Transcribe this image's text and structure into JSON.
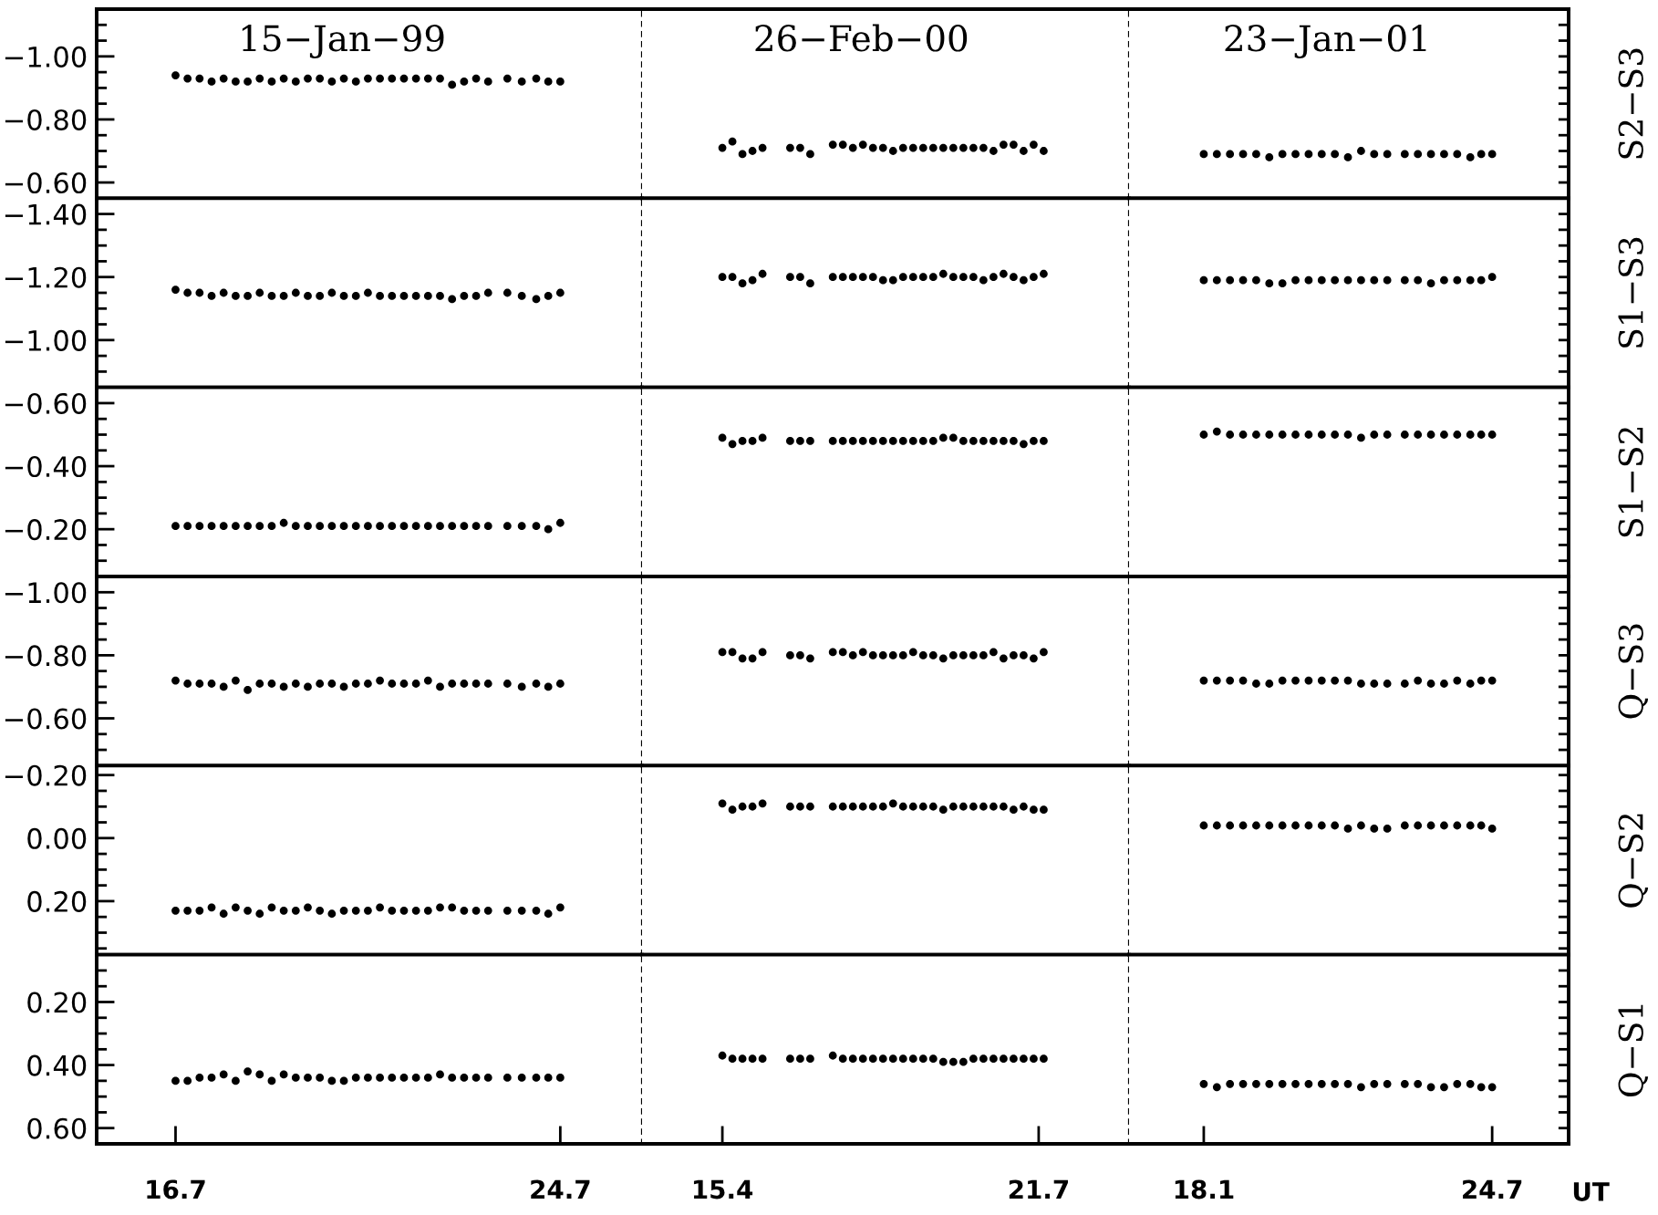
{
  "chart_data": [
    {
      "type": "scatter",
      "title": "15−Jan−99",
      "marker": "circle",
      "color": "#000000",
      "tick_labels": "y",
      "xlim": [
        15.06,
        26.4
      ],
      "ylim": [
        -0.55,
        -1.15
      ],
      "yticks": [
        {
          "value": -1.1,
          "label": null
        },
        {
          "value": -1.05,
          "label": null
        },
        {
          "value": -1.0,
          "label": "−1.00"
        },
        {
          "value": -0.95,
          "label": null
        },
        {
          "value": -0.9,
          "label": null
        },
        {
          "value": -0.85,
          "label": null
        },
        {
          "value": -0.8,
          "label": "−0.80"
        },
        {
          "value": -0.75,
          "label": null
        },
        {
          "value": -0.7,
          "label": null
        },
        {
          "value": -0.65,
          "label": null
        },
        {
          "value": -0.6,
          "label": "−0.60"
        }
      ],
      "x": [
        16.7,
        16.95,
        17.2,
        17.45,
        17.7,
        17.95,
        18.2,
        18.45,
        18.7,
        18.95,
        19.2,
        19.45,
        19.7,
        19.95,
        20.2,
        20.45,
        20.7,
        20.95,
        21.2,
        21.45,
        21.7,
        21.95,
        22.2,
        22.45,
        22.7,
        22.95,
        23.2,
        23.6,
        23.9,
        24.2,
        24.45,
        24.7
      ],
      "values": [
        -0.94,
        -0.93,
        -0.93,
        -0.92,
        -0.93,
        -0.92,
        -0.92,
        -0.93,
        -0.92,
        -0.93,
        -0.92,
        -0.93,
        -0.93,
        -0.92,
        -0.93,
        -0.92,
        -0.93,
        -0.93,
        -0.93,
        -0.93,
        -0.93,
        -0.93,
        -0.93,
        -0.91,
        -0.92,
        -0.93,
        -0.92,
        -0.93,
        -0.92,
        -0.93,
        -0.92,
        -0.92
      ]
    },
    {
      "type": "scatter",
      "title": "26−Feb−00",
      "marker": "circle",
      "color": "#000000",
      "tick_labels": false,
      "xlim": [
        13.8,
        23.5
      ],
      "ylim": [
        -0.55,
        -1.15
      ],
      "x": [
        15.4,
        15.6,
        15.8,
        16.0,
        16.2,
        16.75,
        16.95,
        17.15,
        17.6,
        17.8,
        18.0,
        18.2,
        18.4,
        18.6,
        18.8,
        19.0,
        19.2,
        19.4,
        19.6,
        19.8,
        20.0,
        20.2,
        20.4,
        20.6,
        20.8,
        21.0,
        21.2,
        21.4,
        21.6,
        21.8
      ],
      "values": [
        -0.71,
        -0.73,
        -0.69,
        -0.7,
        -0.71,
        -0.71,
        -0.71,
        -0.69,
        -0.72,
        -0.72,
        -0.71,
        -0.72,
        -0.71,
        -0.71,
        -0.7,
        -0.71,
        -0.71,
        -0.71,
        -0.71,
        -0.71,
        -0.71,
        -0.71,
        -0.71,
        -0.71,
        -0.7,
        -0.72,
        -0.72,
        -0.7,
        -0.72,
        -0.7
      ]
    },
    {
      "type": "scatter",
      "title": "23−Jan−01",
      "y2label": "S2−S3",
      "marker": "circle",
      "color": "#000000",
      "tick_labels": false,
      "xlim": [
        16.39,
        26.45
      ],
      "ylim": [
        -0.55,
        -1.15
      ],
      "yticks": [
        {
          "value": -1.1,
          "label": null
        },
        {
          "value": -1.05,
          "label": null
        },
        {
          "value": -1.0,
          "label": null
        },
        {
          "value": -0.95,
          "label": null
        },
        {
          "value": -0.9,
          "label": null
        },
        {
          "value": -0.85,
          "label": null
        },
        {
          "value": -0.8,
          "label": null
        },
        {
          "value": -0.75,
          "label": null
        },
        {
          "value": -0.7,
          "label": null
        },
        {
          "value": -0.65,
          "label": null
        },
        {
          "value": -0.6,
          "label": null
        }
      ],
      "x": [
        18.1,
        18.4,
        18.7,
        19.0,
        19.3,
        19.6,
        19.9,
        20.2,
        20.5,
        20.8,
        21.1,
        21.4,
        21.7,
        22.0,
        22.3,
        22.7,
        23.0,
        23.3,
        23.6,
        23.9,
        24.2,
        24.45,
        24.7
      ],
      "values": [
        -0.69,
        -0.69,
        -0.69,
        -0.69,
        -0.69,
        -0.68,
        -0.69,
        -0.69,
        -0.69,
        -0.69,
        -0.69,
        -0.68,
        -0.7,
        -0.69,
        -0.69,
        -0.69,
        -0.69,
        -0.69,
        -0.69,
        -0.69,
        -0.68,
        -0.69,
        -0.69
      ]
    },
    {
      "type": "scatter",
      "marker": "circle",
      "color": "#000000",
      "tick_labels": "y",
      "xlim": [
        15.06,
        26.4
      ],
      "ylim": [
        -0.85,
        -1.45
      ],
      "yticks": [
        {
          "value": -1.4,
          "label": "−1.40"
        },
        {
          "value": -1.35,
          "label": null
        },
        {
          "value": -1.3,
          "label": null
        },
        {
          "value": -1.25,
          "label": null
        },
        {
          "value": -1.2,
          "label": "−1.20"
        },
        {
          "value": -1.15,
          "label": null
        },
        {
          "value": -1.1,
          "label": null
        },
        {
          "value": -1.05,
          "label": null
        },
        {
          "value": -1.0,
          "label": "−1.00"
        },
        {
          "value": -0.95,
          "label": null
        },
        {
          "value": -0.9,
          "label": null
        }
      ],
      "x": [
        16.7,
        16.95,
        17.2,
        17.45,
        17.7,
        17.95,
        18.2,
        18.45,
        18.7,
        18.95,
        19.2,
        19.45,
        19.7,
        19.95,
        20.2,
        20.45,
        20.7,
        20.95,
        21.2,
        21.45,
        21.7,
        21.95,
        22.2,
        22.45,
        22.7,
        22.95,
        23.2,
        23.6,
        23.9,
        24.2,
        24.45,
        24.7
      ],
      "values": [
        -1.16,
        -1.15,
        -1.15,
        -1.14,
        -1.15,
        -1.14,
        -1.14,
        -1.15,
        -1.14,
        -1.14,
        -1.15,
        -1.14,
        -1.14,
        -1.15,
        -1.14,
        -1.14,
        -1.15,
        -1.14,
        -1.14,
        -1.14,
        -1.14,
        -1.14,
        -1.14,
        -1.13,
        -1.14,
        -1.14,
        -1.15,
        -1.15,
        -1.14,
        -1.13,
        -1.14,
        -1.15
      ]
    },
    {
      "type": "scatter",
      "marker": "circle",
      "color": "#000000",
      "tick_labels": false,
      "xlim": [
        13.8,
        23.5
      ],
      "ylim": [
        -0.85,
        -1.45
      ],
      "x": [
        15.4,
        15.6,
        15.8,
        16.0,
        16.2,
        16.75,
        16.95,
        17.15,
        17.6,
        17.8,
        18.0,
        18.2,
        18.4,
        18.6,
        18.8,
        19.0,
        19.2,
        19.4,
        19.6,
        19.8,
        20.0,
        20.2,
        20.4,
        20.6,
        20.8,
        21.0,
        21.2,
        21.4,
        21.6,
        21.8
      ],
      "values": [
        -1.2,
        -1.2,
        -1.18,
        -1.19,
        -1.21,
        -1.2,
        -1.2,
        -1.18,
        -1.2,
        -1.2,
        -1.2,
        -1.2,
        -1.2,
        -1.19,
        -1.19,
        -1.2,
        -1.2,
        -1.2,
        -1.2,
        -1.21,
        -1.2,
        -1.2,
        -1.2,
        -1.19,
        -1.2,
        -1.21,
        -1.2,
        -1.19,
        -1.2,
        -1.21
      ]
    },
    {
      "type": "scatter",
      "y2label": "S1−S3",
      "marker": "circle",
      "color": "#000000",
      "tick_labels": false,
      "xlim": [
        16.39,
        26.45
      ],
      "ylim": [
        -0.85,
        -1.45
      ],
      "yticks": [
        {
          "value": -1.4,
          "label": null
        },
        {
          "value": -1.35,
          "label": null
        },
        {
          "value": -1.3,
          "label": null
        },
        {
          "value": -1.25,
          "label": null
        },
        {
          "value": -1.2,
          "label": null
        },
        {
          "value": -1.15,
          "label": null
        },
        {
          "value": -1.1,
          "label": null
        },
        {
          "value": -1.05,
          "label": null
        },
        {
          "value": -1.0,
          "label": null
        },
        {
          "value": -0.95,
          "label": null
        },
        {
          "value": -0.9,
          "label": null
        }
      ],
      "x": [
        18.1,
        18.4,
        18.7,
        19.0,
        19.3,
        19.6,
        19.9,
        20.2,
        20.5,
        20.8,
        21.1,
        21.4,
        21.7,
        22.0,
        22.3,
        22.7,
        23.0,
        23.3,
        23.6,
        23.9,
        24.2,
        24.45,
        24.7
      ],
      "values": [
        -1.19,
        -1.19,
        -1.19,
        -1.19,
        -1.19,
        -1.18,
        -1.18,
        -1.19,
        -1.19,
        -1.19,
        -1.19,
        -1.19,
        -1.19,
        -1.19,
        -1.19,
        -1.19,
        -1.19,
        -1.18,
        -1.19,
        -1.19,
        -1.19,
        -1.19,
        -1.2
      ]
    },
    {
      "type": "scatter",
      "marker": "circle",
      "color": "#000000",
      "tick_labels": "y",
      "xlim": [
        15.06,
        26.4
      ],
      "ylim": [
        -0.05,
        -0.65
      ],
      "yticks": [
        {
          "value": -0.6,
          "label": "−0.60"
        },
        {
          "value": -0.55,
          "label": null
        },
        {
          "value": -0.5,
          "label": null
        },
        {
          "value": -0.45,
          "label": null
        },
        {
          "value": -0.4,
          "label": "−0.40"
        },
        {
          "value": -0.35,
          "label": null
        },
        {
          "value": -0.3,
          "label": null
        },
        {
          "value": -0.25,
          "label": null
        },
        {
          "value": -0.2,
          "label": "−0.20"
        },
        {
          "value": -0.15,
          "label": null
        },
        {
          "value": -0.1,
          "label": null
        }
      ],
      "x": [
        16.7,
        16.95,
        17.2,
        17.45,
        17.7,
        17.95,
        18.2,
        18.45,
        18.7,
        18.95,
        19.2,
        19.45,
        19.7,
        19.95,
        20.2,
        20.45,
        20.7,
        20.95,
        21.2,
        21.45,
        21.7,
        21.95,
        22.2,
        22.45,
        22.7,
        22.95,
        23.2,
        23.6,
        23.9,
        24.2,
        24.45,
        24.7
      ],
      "values": [
        -0.21,
        -0.21,
        -0.21,
        -0.21,
        -0.21,
        -0.21,
        -0.21,
        -0.21,
        -0.21,
        -0.22,
        -0.21,
        -0.21,
        -0.21,
        -0.21,
        -0.21,
        -0.21,
        -0.21,
        -0.21,
        -0.21,
        -0.21,
        -0.21,
        -0.21,
        -0.21,
        -0.21,
        -0.21,
        -0.21,
        -0.21,
        -0.21,
        -0.21,
        -0.21,
        -0.2,
        -0.22
      ]
    },
    {
      "type": "scatter",
      "marker": "circle",
      "color": "#000000",
      "tick_labels": false,
      "xlim": [
        13.8,
        23.5
      ],
      "ylim": [
        -0.05,
        -0.65
      ],
      "x": [
        15.4,
        15.6,
        15.8,
        16.0,
        16.2,
        16.75,
        16.95,
        17.15,
        17.6,
        17.8,
        18.0,
        18.2,
        18.4,
        18.6,
        18.8,
        19.0,
        19.2,
        19.4,
        19.6,
        19.8,
        20.0,
        20.2,
        20.4,
        20.6,
        20.8,
        21.0,
        21.2,
        21.4,
        21.6,
        21.8
      ],
      "values": [
        -0.49,
        -0.47,
        -0.48,
        -0.48,
        -0.49,
        -0.48,
        -0.48,
        -0.48,
        -0.48,
        -0.48,
        -0.48,
        -0.48,
        -0.48,
        -0.48,
        -0.48,
        -0.48,
        -0.48,
        -0.48,
        -0.48,
        -0.49,
        -0.49,
        -0.48,
        -0.48,
        -0.48,
        -0.48,
        -0.48,
        -0.48,
        -0.47,
        -0.48,
        -0.48
      ]
    },
    {
      "type": "scatter",
      "y2label": "S1−S2",
      "marker": "circle",
      "color": "#000000",
      "tick_labels": false,
      "xlim": [
        16.39,
        26.45
      ],
      "ylim": [
        -0.05,
        -0.65
      ],
      "yticks": [
        {
          "value": -0.6,
          "label": null
        },
        {
          "value": -0.55,
          "label": null
        },
        {
          "value": -0.5,
          "label": null
        },
        {
          "value": -0.45,
          "label": null
        },
        {
          "value": -0.4,
          "label": null
        },
        {
          "value": -0.35,
          "label": null
        },
        {
          "value": -0.3,
          "label": null
        },
        {
          "value": -0.25,
          "label": null
        },
        {
          "value": -0.2,
          "label": null
        },
        {
          "value": -0.15,
          "label": null
        },
        {
          "value": -0.1,
          "label": null
        }
      ],
      "x": [
        18.1,
        18.4,
        18.7,
        19.0,
        19.3,
        19.6,
        19.9,
        20.2,
        20.5,
        20.8,
        21.1,
        21.4,
        21.7,
        22.0,
        22.3,
        22.7,
        23.0,
        23.3,
        23.6,
        23.9,
        24.2,
        24.45,
        24.7
      ],
      "values": [
        -0.5,
        -0.51,
        -0.5,
        -0.5,
        -0.5,
        -0.5,
        -0.5,
        -0.5,
        -0.5,
        -0.5,
        -0.5,
        -0.5,
        -0.49,
        -0.5,
        -0.5,
        -0.5,
        -0.5,
        -0.5,
        -0.5,
        -0.5,
        -0.5,
        -0.5,
        -0.5
      ]
    },
    {
      "type": "scatter",
      "marker": "circle",
      "color": "#000000",
      "tick_labels": "y",
      "xlim": [
        15.06,
        26.4
      ],
      "ylim": [
        -0.45,
        -1.05
      ],
      "yticks": [
        {
          "value": -1.0,
          "label": "−1.00"
        },
        {
          "value": -0.95,
          "label": null
        },
        {
          "value": -0.9,
          "label": null
        },
        {
          "value": -0.85,
          "label": null
        },
        {
          "value": -0.8,
          "label": "−0.80"
        },
        {
          "value": -0.75,
          "label": null
        },
        {
          "value": -0.7,
          "label": null
        },
        {
          "value": -0.65,
          "label": null
        },
        {
          "value": -0.6,
          "label": "−0.60"
        },
        {
          "value": -0.55,
          "label": null
        },
        {
          "value": -0.5,
          "label": null
        }
      ],
      "x": [
        16.7,
        16.95,
        17.2,
        17.45,
        17.7,
        17.95,
        18.2,
        18.45,
        18.7,
        18.95,
        19.2,
        19.45,
        19.7,
        19.95,
        20.2,
        20.45,
        20.7,
        20.95,
        21.2,
        21.45,
        21.7,
        21.95,
        22.2,
        22.45,
        22.7,
        22.95,
        23.2,
        23.6,
        23.9,
        24.2,
        24.45,
        24.7
      ],
      "values": [
        -0.72,
        -0.71,
        -0.71,
        -0.71,
        -0.7,
        -0.72,
        -0.69,
        -0.71,
        -0.71,
        -0.7,
        -0.71,
        -0.7,
        -0.71,
        -0.71,
        -0.7,
        -0.71,
        -0.71,
        -0.72,
        -0.71,
        -0.71,
        -0.71,
        -0.72,
        -0.7,
        -0.71,
        -0.71,
        -0.71,
        -0.71,
        -0.71,
        -0.7,
        -0.71,
        -0.7,
        -0.71
      ]
    },
    {
      "type": "scatter",
      "marker": "circle",
      "color": "#000000",
      "tick_labels": false,
      "xlim": [
        13.8,
        23.5
      ],
      "ylim": [
        -0.45,
        -1.05
      ],
      "x": [
        15.4,
        15.6,
        15.8,
        16.0,
        16.2,
        16.75,
        16.95,
        17.15,
        17.6,
        17.8,
        18.0,
        18.2,
        18.4,
        18.6,
        18.8,
        19.0,
        19.2,
        19.4,
        19.6,
        19.8,
        20.0,
        20.2,
        20.4,
        20.6,
        20.8,
        21.0,
        21.2,
        21.4,
        21.6,
        21.8
      ],
      "values": [
        -0.81,
        -0.81,
        -0.79,
        -0.79,
        -0.81,
        -0.8,
        -0.8,
        -0.79,
        -0.81,
        -0.81,
        -0.8,
        -0.81,
        -0.8,
        -0.8,
        -0.8,
        -0.8,
        -0.81,
        -0.8,
        -0.8,
        -0.79,
        -0.8,
        -0.8,
        -0.8,
        -0.8,
        -0.81,
        -0.79,
        -0.8,
        -0.8,
        -0.79,
        -0.81
      ]
    },
    {
      "type": "scatter",
      "y2label": "Q−S3",
      "marker": "circle",
      "color": "#000000",
      "tick_labels": false,
      "xlim": [
        16.39,
        26.45
      ],
      "ylim": [
        -0.45,
        -1.05
      ],
      "yticks": [
        {
          "value": -1.0,
          "label": null
        },
        {
          "value": -0.95,
          "label": null
        },
        {
          "value": -0.9,
          "label": null
        },
        {
          "value": -0.85,
          "label": null
        },
        {
          "value": -0.8,
          "label": null
        },
        {
          "value": -0.75,
          "label": null
        },
        {
          "value": -0.7,
          "label": null
        },
        {
          "value": -0.65,
          "label": null
        },
        {
          "value": -0.6,
          "label": null
        },
        {
          "value": -0.55,
          "label": null
        },
        {
          "value": -0.5,
          "label": null
        }
      ],
      "x": [
        18.1,
        18.4,
        18.7,
        19.0,
        19.3,
        19.6,
        19.9,
        20.2,
        20.5,
        20.8,
        21.1,
        21.4,
        21.7,
        22.0,
        22.3,
        22.7,
        23.0,
        23.3,
        23.6,
        23.9,
        24.2,
        24.45,
        24.7
      ],
      "values": [
        -0.72,
        -0.72,
        -0.72,
        -0.72,
        -0.71,
        -0.71,
        -0.72,
        -0.72,
        -0.72,
        -0.72,
        -0.72,
        -0.72,
        -0.71,
        -0.71,
        -0.71,
        -0.71,
        -0.72,
        -0.71,
        -0.71,
        -0.72,
        -0.71,
        -0.72,
        -0.72
      ]
    },
    {
      "type": "scatter",
      "marker": "circle",
      "color": "#000000",
      "tick_labels": "y",
      "xlim": [
        15.06,
        26.4
      ],
      "ylim": [
        0.37,
        -0.23
      ],
      "yticks": [
        {
          "value": -0.2,
          "label": "−0.20"
        },
        {
          "value": -0.15,
          "label": null
        },
        {
          "value": -0.1,
          "label": null
        },
        {
          "value": -0.05,
          "label": null
        },
        {
          "value": 0.0,
          "label": "0.00"
        },
        {
          "value": 0.05,
          "label": null
        },
        {
          "value": 0.1,
          "label": null
        },
        {
          "value": 0.15,
          "label": null
        },
        {
          "value": 0.2,
          "label": "0.20"
        },
        {
          "value": 0.25,
          "label": null
        },
        {
          "value": 0.3,
          "label": null
        },
        {
          "value": 0.35,
          "label": null
        }
      ],
      "x": [
        16.7,
        16.95,
        17.2,
        17.45,
        17.7,
        17.95,
        18.2,
        18.45,
        18.7,
        18.95,
        19.2,
        19.45,
        19.7,
        19.95,
        20.2,
        20.45,
        20.7,
        20.95,
        21.2,
        21.45,
        21.7,
        21.95,
        22.2,
        22.45,
        22.7,
        22.95,
        23.2,
        23.6,
        23.9,
        24.2,
        24.45,
        24.7
      ],
      "values": [
        0.23,
        0.23,
        0.23,
        0.22,
        0.24,
        0.22,
        0.23,
        0.24,
        0.22,
        0.23,
        0.23,
        0.22,
        0.23,
        0.24,
        0.23,
        0.23,
        0.23,
        0.22,
        0.23,
        0.23,
        0.23,
        0.23,
        0.22,
        0.22,
        0.23,
        0.23,
        0.23,
        0.23,
        0.23,
        0.23,
        0.24,
        0.22
      ]
    },
    {
      "type": "scatter",
      "marker": "circle",
      "color": "#000000",
      "tick_labels": false,
      "xlim": [
        13.8,
        23.5
      ],
      "ylim": [
        0.37,
        -0.23
      ],
      "x": [
        15.4,
        15.6,
        15.8,
        16.0,
        16.2,
        16.75,
        16.95,
        17.15,
        17.6,
        17.8,
        18.0,
        18.2,
        18.4,
        18.6,
        18.8,
        19.0,
        19.2,
        19.4,
        19.6,
        19.8,
        20.0,
        20.2,
        20.4,
        20.6,
        20.8,
        21.0,
        21.2,
        21.4,
        21.6,
        21.8
      ],
      "values": [
        -0.11,
        -0.09,
        -0.1,
        -0.1,
        -0.11,
        -0.1,
        -0.1,
        -0.1,
        -0.1,
        -0.1,
        -0.1,
        -0.1,
        -0.1,
        -0.1,
        -0.11,
        -0.1,
        -0.1,
        -0.1,
        -0.1,
        -0.09,
        -0.1,
        -0.1,
        -0.1,
        -0.1,
        -0.1,
        -0.1,
        -0.09,
        -0.1,
        -0.09,
        -0.09
      ]
    },
    {
      "type": "scatter",
      "y2label": "Q−S2",
      "marker": "circle",
      "color": "#000000",
      "tick_labels": false,
      "xlim": [
        16.39,
        26.45
      ],
      "ylim": [
        0.37,
        -0.23
      ],
      "yticks": [
        {
          "value": -0.2,
          "label": null
        },
        {
          "value": -0.15,
          "label": null
        },
        {
          "value": -0.1,
          "label": null
        },
        {
          "value": -0.05,
          "label": null
        },
        {
          "value": 0.0,
          "label": null
        },
        {
          "value": 0.05,
          "label": null
        },
        {
          "value": 0.1,
          "label": null
        },
        {
          "value": 0.15,
          "label": null
        },
        {
          "value": 0.2,
          "label": null
        },
        {
          "value": 0.25,
          "label": null
        },
        {
          "value": 0.3,
          "label": null
        },
        {
          "value": 0.35,
          "label": null
        }
      ],
      "x": [
        18.1,
        18.4,
        18.7,
        19.0,
        19.3,
        19.6,
        19.9,
        20.2,
        20.5,
        20.8,
        21.1,
        21.4,
        21.7,
        22.0,
        22.3,
        22.7,
        23.0,
        23.3,
        23.6,
        23.9,
        24.2,
        24.45,
        24.7
      ],
      "values": [
        -0.04,
        -0.04,
        -0.04,
        -0.04,
        -0.04,
        -0.04,
        -0.04,
        -0.04,
        -0.04,
        -0.04,
        -0.04,
        -0.03,
        -0.04,
        -0.03,
        -0.03,
        -0.04,
        -0.04,
        -0.04,
        -0.04,
        -0.04,
        -0.04,
        -0.04,
        -0.03
      ]
    },
    {
      "type": "scatter",
      "marker": "circle",
      "color": "#000000",
      "xlim": [
        15.06,
        26.4
      ],
      "ylim": [
        0.65,
        0.05
      ],
      "xticks": [
        16.7,
        24.7
      ],
      "yticks": [
        {
          "value": 0.1,
          "label": null
        },
        {
          "value": 0.15,
          "label": null
        },
        {
          "value": 0.2,
          "label": "0.20"
        },
        {
          "value": 0.25,
          "label": null
        },
        {
          "value": 0.3,
          "label": null
        },
        {
          "value": 0.35,
          "label": null
        },
        {
          "value": 0.4,
          "label": "0.40"
        },
        {
          "value": 0.45,
          "label": null
        },
        {
          "value": 0.5,
          "label": null
        },
        {
          "value": 0.55,
          "label": null
        },
        {
          "value": 0.6,
          "label": "0.60"
        }
      ],
      "x": [
        16.7,
        16.95,
        17.2,
        17.45,
        17.7,
        17.95,
        18.2,
        18.45,
        18.7,
        18.95,
        19.2,
        19.45,
        19.7,
        19.95,
        20.2,
        20.45,
        20.7,
        20.95,
        21.2,
        21.45,
        21.7,
        21.95,
        22.2,
        22.45,
        22.7,
        22.95,
        23.2,
        23.6,
        23.9,
        24.2,
        24.45,
        24.7
      ],
      "values": [
        0.45,
        0.45,
        0.44,
        0.44,
        0.43,
        0.45,
        0.42,
        0.43,
        0.45,
        0.43,
        0.44,
        0.44,
        0.44,
        0.45,
        0.45,
        0.44,
        0.44,
        0.44,
        0.44,
        0.44,
        0.44,
        0.44,
        0.43,
        0.44,
        0.44,
        0.44,
        0.44,
        0.44,
        0.44,
        0.44,
        0.44,
        0.44
      ]
    },
    {
      "type": "scatter",
      "marker": "circle",
      "color": "#000000",
      "tick_labels": "x",
      "xlim": [
        13.8,
        23.5
      ],
      "ylim": [
        0.65,
        0.05
      ],
      "xticks": [
        15.4,
        21.7
      ],
      "x": [
        15.4,
        15.6,
        15.8,
        16.0,
        16.2,
        16.75,
        16.95,
        17.15,
        17.6,
        17.8,
        18.0,
        18.2,
        18.4,
        18.6,
        18.8,
        19.0,
        19.2,
        19.4,
        19.6,
        19.8,
        20.0,
        20.2,
        20.4,
        20.6,
        20.8,
        21.0,
        21.2,
        21.4,
        21.6,
        21.8
      ],
      "values": [
        0.37,
        0.38,
        0.38,
        0.38,
        0.38,
        0.38,
        0.38,
        0.38,
        0.37,
        0.38,
        0.38,
        0.38,
        0.38,
        0.38,
        0.38,
        0.38,
        0.38,
        0.38,
        0.38,
        0.39,
        0.39,
        0.39,
        0.38,
        0.38,
        0.38,
        0.38,
        0.38,
        0.38,
        0.38,
        0.38
      ]
    },
    {
      "type": "scatter",
      "y2label": "Q−S1",
      "xlabel": "UT",
      "marker": "circle",
      "color": "#000000",
      "tick_labels": "x",
      "xlim": [
        16.39,
        26.45
      ],
      "ylim": [
        0.65,
        0.05
      ],
      "xticks": [
        18.1,
        24.7
      ],
      "yticks": [
        {
          "value": 0.1,
          "label": null
        },
        {
          "value": 0.15,
          "label": null
        },
        {
          "value": 0.2,
          "label": null
        },
        {
          "value": 0.25,
          "label": null
        },
        {
          "value": 0.3,
          "label": null
        },
        {
          "value": 0.35,
          "label": null
        },
        {
          "value": 0.4,
          "label": null
        },
        {
          "value": 0.45,
          "label": null
        },
        {
          "value": 0.5,
          "label": null
        },
        {
          "value": 0.55,
          "label": null
        },
        {
          "value": 0.6,
          "label": null
        }
      ],
      "x": [
        18.1,
        18.4,
        18.7,
        19.0,
        19.3,
        19.6,
        19.9,
        20.2,
        20.5,
        20.8,
        21.1,
        21.4,
        21.7,
        22.0,
        22.3,
        22.7,
        23.0,
        23.3,
        23.6,
        23.9,
        24.2,
        24.45,
        24.7
      ],
      "values": [
        0.46,
        0.47,
        0.46,
        0.46,
        0.46,
        0.46,
        0.46,
        0.46,
        0.46,
        0.46,
        0.46,
        0.46,
        0.47,
        0.46,
        0.46,
        0.46,
        0.46,
        0.47,
        0.47,
        0.46,
        0.46,
        0.47,
        0.47
      ]
    }
  ]
}
